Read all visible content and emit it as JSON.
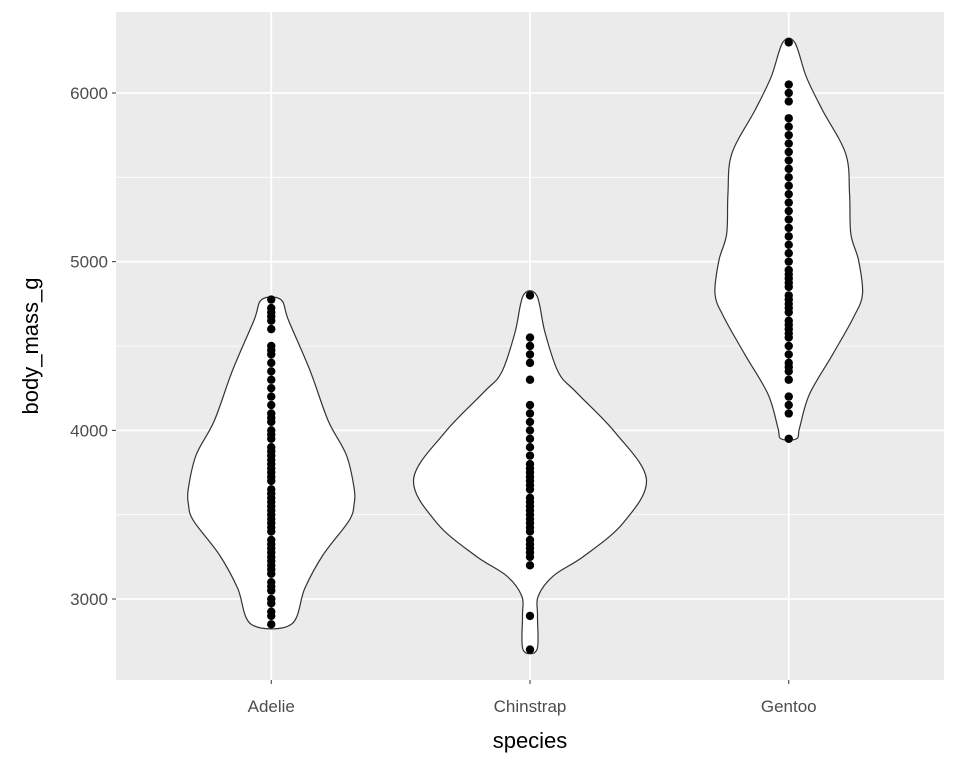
{
  "chart_data": {
    "type": "violin",
    "title": "",
    "xlabel": "species",
    "ylabel": "body_mass_g",
    "categories": [
      "Adelie",
      "Chinstrap",
      "Gentoo"
    ],
    "ylim": [
      2520,
      6480
    ],
    "xlim": [
      0.4,
      3.6
    ],
    "yticks": [
      3000,
      4000,
      5000,
      6000
    ],
    "yticks_minor": [
      3500,
      4500,
      5500
    ],
    "grid": true,
    "colors": {
      "panel": "#EBEBEB",
      "grid": "#FFFFFF",
      "violin_fill": "#FFFFFF",
      "violin_stroke": "#333333",
      "point": "#000000",
      "tick_text": "#4D4D4D",
      "title_text": "#000000"
    },
    "violins": [
      {
        "name": "Adelie",
        "outline": [
          [
            2850,
            0.077
          ],
          [
            3065,
            0.13
          ],
          [
            3261,
            0.2
          ],
          [
            3463,
            0.3
          ],
          [
            3560,
            0.32
          ],
          [
            3659,
            0.32
          ],
          [
            3855,
            0.29
          ],
          [
            4057,
            0.22
          ],
          [
            4354,
            0.15
          ],
          [
            4651,
            0.067
          ],
          [
            4775,
            0.037
          ]
        ]
      },
      {
        "name": "Chinstrap",
        "outline": [
          [
            2700,
            0.027
          ],
          [
            2899,
            0.029
          ],
          [
            3018,
            0.032
          ],
          [
            3137,
            0.09
          ],
          [
            3256,
            0.21
          ],
          [
            3451,
            0.36
          ],
          [
            3709,
            0.45
          ],
          [
            3986,
            0.33
          ],
          [
            4224,
            0.18
          ],
          [
            4343,
            0.11
          ],
          [
            4580,
            0.058
          ],
          [
            4800,
            0.026
          ]
        ]
      },
      {
        "name": "Gentoo",
        "outline": [
          [
            3950,
            0.03
          ],
          [
            4016,
            0.042
          ],
          [
            4214,
            0.08
          ],
          [
            4451,
            0.17
          ],
          [
            4669,
            0.25
          ],
          [
            4808,
            0.285
          ],
          [
            5007,
            0.27
          ],
          [
            5164,
            0.24
          ],
          [
            5402,
            0.235
          ],
          [
            5640,
            0.22
          ],
          [
            5899,
            0.13
          ],
          [
            6095,
            0.068
          ],
          [
            6300,
            0.023
          ]
        ]
      }
    ],
    "points": [
      {
        "name": "Adelie",
        "values": [
          2850,
          2900,
          2925,
          2975,
          3000,
          3050,
          3075,
          3100,
          3150,
          3175,
          3200,
          3225,
          3250,
          3275,
          3300,
          3325,
          3350,
          3400,
          3425,
          3450,
          3475,
          3500,
          3525,
          3550,
          3575,
          3600,
          3625,
          3650,
          3700,
          3725,
          3750,
          3775,
          3800,
          3825,
          3850,
          3875,
          3900,
          3950,
          3975,
          4000,
          4050,
          4075,
          4100,
          4150,
          4200,
          4250,
          4300,
          4350,
          4400,
          4450,
          4475,
          4500,
          4600,
          4650,
          4675,
          4700,
          4725,
          4775
        ]
      },
      {
        "name": "Chinstrap",
        "values": [
          2700,
          2900,
          3200,
          3250,
          3275,
          3300,
          3325,
          3350,
          3400,
          3425,
          3450,
          3475,
          3500,
          3525,
          3550,
          3575,
          3600,
          3650,
          3675,
          3700,
          3725,
          3750,
          3775,
          3800,
          3850,
          3900,
          3950,
          4000,
          4050,
          4100,
          4150,
          4300,
          4400,
          4450,
          4500,
          4550,
          4800
        ]
      },
      {
        "name": "Gentoo",
        "values": [
          3950,
          4100,
          4150,
          4200,
          4300,
          4350,
          4375,
          4400,
          4450,
          4500,
          4550,
          4575,
          4600,
          4625,
          4650,
          4700,
          4725,
          4750,
          4775,
          4800,
          4850,
          4875,
          4900,
          4925,
          4950,
          5000,
          5050,
          5100,
          5150,
          5200,
          5250,
          5300,
          5350,
          5400,
          5450,
          5500,
          5550,
          5600,
          5650,
          5700,
          5750,
          5800,
          5850,
          5950,
          6000,
          6050,
          6300
        ]
      }
    ]
  }
}
